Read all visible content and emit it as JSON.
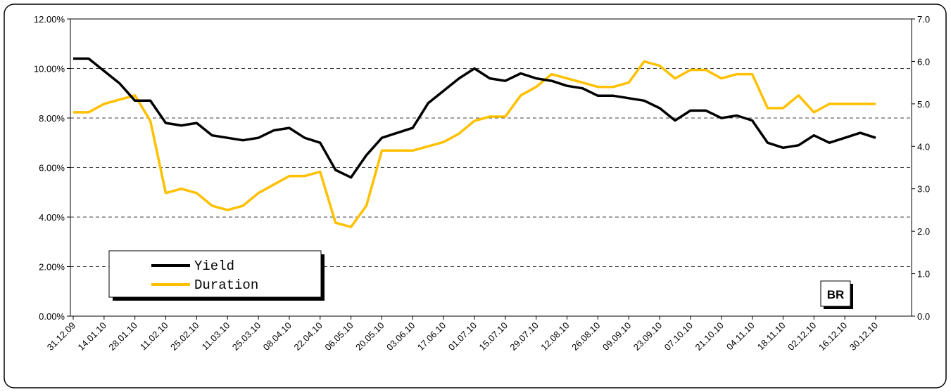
{
  "chart_data": {
    "type": "line",
    "categories": [
      "31.12.09",
      null,
      "14.01.10",
      null,
      "28.01.10",
      null,
      "11.02.10",
      null,
      "25.02.10",
      null,
      "11.03.10",
      null,
      "25.03.10",
      null,
      "08.04.10",
      null,
      "22.04.10",
      null,
      "06.05.10",
      null,
      "20.05.10",
      null,
      "03.06.10",
      null,
      "17.06.10",
      null,
      "01.07.10",
      null,
      "15.07.10",
      null,
      "29.07.10",
      null,
      "12.08.10",
      null,
      "26.08.10",
      null,
      "09.09.10",
      null,
      "23.09.10",
      null,
      "07.10.10",
      null,
      "21.10.10",
      null,
      "04.11.10",
      null,
      "18.11.10",
      null,
      "02.12.10",
      null,
      "16.12.10",
      null,
      "30.12.10"
    ],
    "series": [
      {
        "name": "Yield",
        "color": "#000000",
        "values": [
          10.4,
          10.4,
          9.9,
          9.4,
          8.7,
          8.7,
          7.8,
          7.7,
          7.8,
          7.3,
          7.2,
          7.1,
          7.2,
          7.5,
          7.6,
          7.2,
          7.0,
          5.9,
          5.6,
          6.5,
          7.2,
          7.4,
          7.6,
          8.6,
          9.1,
          9.6,
          10.0,
          9.6,
          9.5,
          9.8,
          9.6,
          9.5,
          9.3,
          9.2,
          8.9,
          8.9,
          8.8,
          8.7,
          8.4,
          7.9,
          8.3,
          8.3,
          8.0,
          8.1,
          7.9,
          7.0,
          6.8,
          6.9,
          7.3,
          7.0,
          7.2,
          7.4,
          7.2
        ]
      },
      {
        "name": "Duration",
        "color": "#ffc000",
        "axis": "y2",
        "values": [
          4.8,
          4.8,
          5.0,
          5.1,
          5.2,
          4.6,
          2.9,
          3.0,
          2.9,
          2.6,
          2.5,
          2.6,
          2.9,
          3.1,
          3.3,
          3.3,
          3.4,
          2.2,
          2.1,
          2.6,
          3.9,
          3.9,
          3.9,
          4.0,
          4.1,
          4.3,
          4.6,
          4.7,
          4.7,
          5.2,
          5.4,
          5.7,
          5.6,
          5.5,
          5.4,
          5.4,
          5.5,
          6.0,
          5.9,
          5.6,
          5.8,
          5.8,
          5.6,
          5.7,
          5.7,
          4.9,
          4.9,
          5.2,
          4.8,
          5.0,
          5.0,
          5.0,
          5.0
        ]
      }
    ],
    "ylim": [
      0,
      12
    ],
    "yticks": [
      {
        "value": 0,
        "label": "0.00%"
      },
      {
        "value": 2,
        "label": "2.00%"
      },
      {
        "value": 4,
        "label": "4.00%"
      },
      {
        "value": 6,
        "label": "6.00%"
      },
      {
        "value": 8,
        "label": "8.00%"
      },
      {
        "value": 10,
        "label": "10.00%"
      },
      {
        "value": 12,
        "label": "12.00%"
      }
    ],
    "y2lim": [
      0,
      7
    ],
    "y2ticks": [
      {
        "value": 0,
        "label": "0.0"
      },
      {
        "value": 1,
        "label": "1.0"
      },
      {
        "value": 2,
        "label": "2.0"
      },
      {
        "value": 3,
        "label": "3.0"
      },
      {
        "value": 4,
        "label": "4.0"
      },
      {
        "value": 5,
        "label": "5.0"
      },
      {
        "value": 6,
        "label": "6.0"
      },
      {
        "value": 7,
        "label": "7.0"
      }
    ],
    "grid": true,
    "legend": "lower left",
    "annotation": "BR"
  }
}
